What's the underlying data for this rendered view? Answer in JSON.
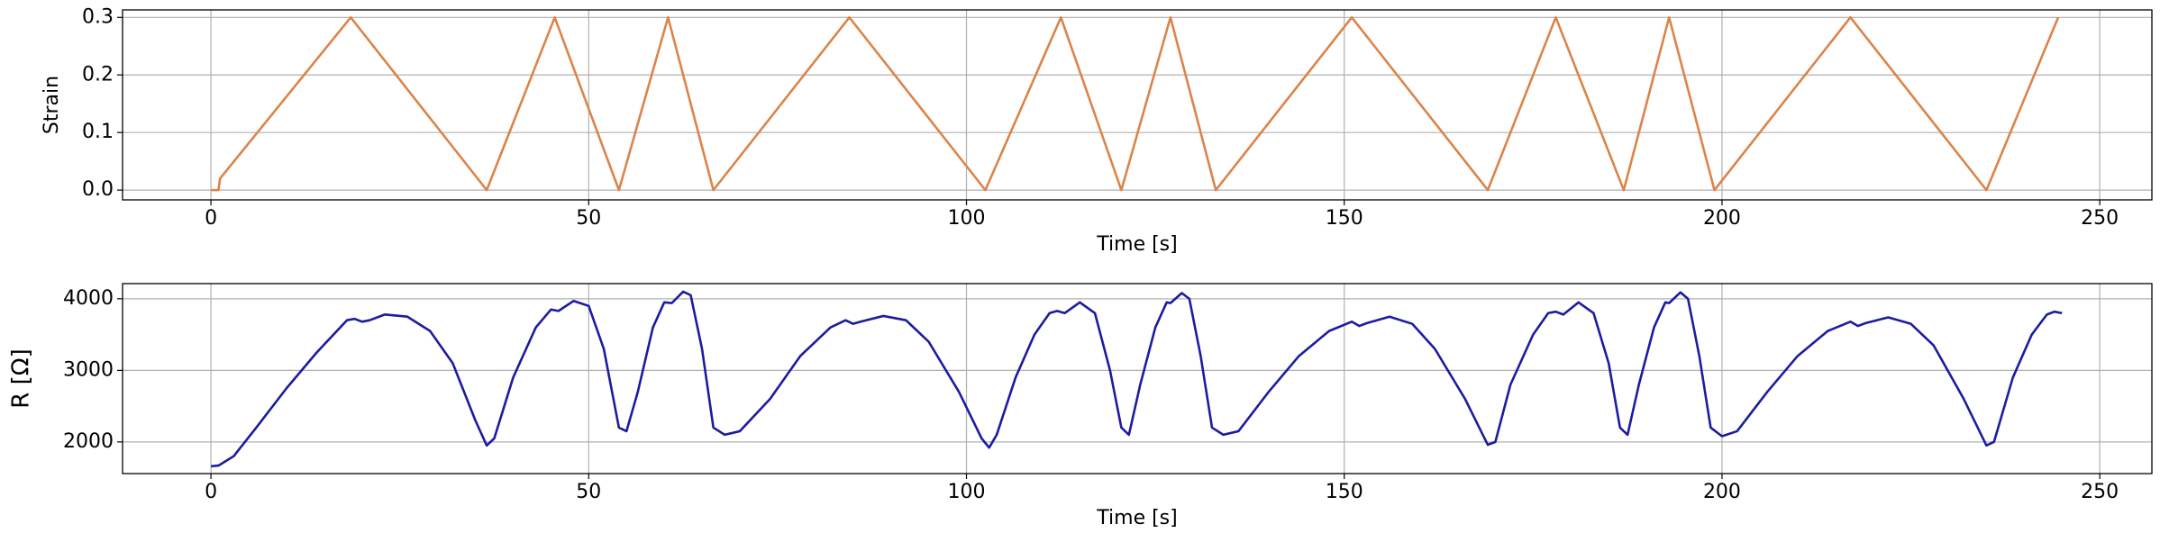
{
  "chart_data": [
    {
      "type": "line",
      "xlabel": "Time [s]",
      "ylabel": "Strain",
      "xlim": [
        -11.7,
        256.9
      ],
      "ylim": [
        -0.017,
        0.313
      ],
      "xticks": [
        0,
        50,
        100,
        150,
        200,
        250
      ],
      "yticks": [
        {
          "value": 0,
          "label": "0.0"
        },
        0.1,
        0.2,
        0.3
      ],
      "grid": true,
      "x": [
        0,
        1,
        1.2,
        18.5,
        36.5,
        45.5,
        54,
        60.5,
        66.5,
        84.5,
        102.5,
        112.5,
        120.5,
        127,
        133,
        151,
        169,
        178,
        187,
        193,
        199,
        217,
        235,
        244.5
      ],
      "series": [
        {
          "name": "Strain",
          "color": "#db8449",
          "values": [
            0,
            0,
            0.02,
            0.3,
            0,
            0.3,
            0,
            0.3,
            0,
            0.3,
            0,
            0.3,
            0,
            0.3,
            0,
            0.3,
            0,
            0.3,
            0,
            0.3,
            0,
            0.3,
            0,
            0.3
          ]
        }
      ]
    },
    {
      "type": "line",
      "xlabel": "Time [s]",
      "ylabel": "R [Ω]",
      "xlim": [
        -11.7,
        256.9
      ],
      "ylim": [
        1558,
        4212
      ],
      "xticks": [
        0,
        50,
        100,
        150,
        200,
        250
      ],
      "yticks": [
        2000,
        3000,
        4000
      ],
      "grid": true,
      "x": [
        0,
        1,
        3,
        6,
        10,
        14,
        18,
        19,
        20,
        21,
        23,
        26,
        29,
        32,
        35,
        36.5,
        37.5,
        40,
        43,
        45,
        46,
        48,
        50,
        52,
        54,
        55,
        56.5,
        58.5,
        60,
        61,
        62.5,
        63.5,
        65,
        66.5,
        68,
        70,
        74,
        78,
        82,
        84,
        85,
        86,
        89,
        92,
        95,
        99,
        102,
        103,
        104,
        106.5,
        109,
        111,
        112,
        113,
        115,
        117,
        119,
        120.5,
        121.5,
        123,
        125,
        126.5,
        127,
        128.5,
        129.5,
        131,
        132.5,
        134,
        136,
        140,
        144,
        148,
        151,
        152,
        153,
        156,
        159,
        162,
        166,
        169,
        170,
        172,
        175,
        177,
        178,
        179,
        181,
        183,
        185,
        186.5,
        187.5,
        189,
        191,
        192.5,
        193,
        194.5,
        195.5,
        197,
        198.5,
        200,
        202,
        206,
        210,
        214,
        217,
        218,
        219,
        222,
        225,
        228,
        232,
        235,
        236,
        238.5,
        241,
        243,
        244,
        245
      ],
      "series": [
        {
          "name": "R",
          "color": "#1c1ca0",
          "values": [
            1660,
            1670,
            1800,
            2200,
            2750,
            3250,
            3700,
            3720,
            3680,
            3700,
            3780,
            3750,
            3550,
            3100,
            2300,
            1950,
            2050,
            2900,
            3600,
            3850,
            3830,
            3970,
            3900,
            3300,
            2200,
            2150,
            2700,
            3600,
            3950,
            3940,
            4100,
            4050,
            3300,
            2200,
            2100,
            2150,
            2600,
            3200,
            3600,
            3700,
            3650,
            3680,
            3760,
            3700,
            3400,
            2700,
            2050,
            1920,
            2100,
            2900,
            3500,
            3800,
            3830,
            3800,
            3950,
            3800,
            3000,
            2200,
            2100,
            2800,
            3600,
            3950,
            3940,
            4080,
            4000,
            3200,
            2200,
            2100,
            2150,
            2700,
            3200,
            3550,
            3680,
            3620,
            3660,
            3750,
            3650,
            3300,
            2600,
            1960,
            2000,
            2800,
            3500,
            3800,
            3820,
            3780,
            3950,
            3800,
            3100,
            2200,
            2100,
            2800,
            3600,
            3950,
            3940,
            4090,
            4000,
            3200,
            2200,
            2080,
            2150,
            2700,
            3200,
            3550,
            3680,
            3620,
            3660,
            3740,
            3650,
            3350,
            2600,
            1950,
            2000,
            2900,
            3500,
            3780,
            3820,
            3800
          ]
        }
      ]
    }
  ]
}
